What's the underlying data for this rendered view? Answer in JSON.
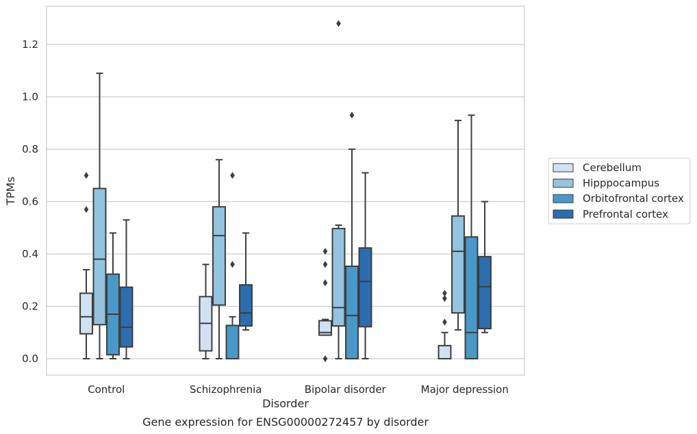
{
  "chart_data": {
    "type": "box",
    "title": "Gene expression for ENSG00000272457 by disorder",
    "xlabel": "Disorder",
    "ylabel": "TPMs",
    "ylim": [
      -0.06,
      1.35
    ],
    "yticks": [
      "0.0",
      "0.2",
      "0.4",
      "0.6",
      "0.8",
      "1.0",
      "1.2"
    ],
    "grid": "horizontal",
    "legend_position": "right",
    "categories": [
      "Control",
      "Schizophrenia",
      "Bipolar disorder",
      "Major depression"
    ],
    "series": [
      {
        "name": "Cerebellum",
        "color": "#d0e1f2",
        "boxes": [
          {
            "whislo": 0.0,
            "q1": 0.095,
            "med": 0.16,
            "q3": 0.25,
            "whishi": 0.34,
            "fliers": [
              0.57,
              0.7
            ]
          },
          {
            "whislo": 0.0,
            "q1": 0.03,
            "med": 0.135,
            "q3": 0.237,
            "whishi": 0.36,
            "fliers": []
          },
          {
            "whislo": 0.09,
            "q1": 0.09,
            "med": 0.1,
            "q3": 0.145,
            "whishi": 0.15,
            "fliers": [
              0.0,
              0.29,
              0.36,
              0.41
            ]
          },
          {
            "whislo": 0.0,
            "q1": 0.0,
            "med": 0.0,
            "q3": 0.05,
            "whishi": 0.1,
            "fliers": [
              0.14,
              0.23,
              0.25
            ]
          }
        ]
      },
      {
        "name": "Hipppocampus",
        "color": "#94c4df",
        "boxes": [
          {
            "whislo": 0.0,
            "q1": 0.13,
            "med": 0.38,
            "q3": 0.65,
            "whishi": 1.09,
            "fliers": []
          },
          {
            "whislo": 0.0,
            "q1": 0.205,
            "med": 0.47,
            "q3": 0.58,
            "whishi": 0.76,
            "fliers": []
          },
          {
            "whislo": 0.0,
            "q1": 0.125,
            "med": 0.195,
            "q3": 0.497,
            "whishi": 0.51,
            "fliers": [
              1.28
            ]
          },
          {
            "whislo": 0.11,
            "q1": 0.175,
            "med": 0.41,
            "q3": 0.545,
            "whishi": 0.91,
            "fliers": []
          }
        ]
      },
      {
        "name": "Orbitofrontal cortex",
        "color": "#4a98c9",
        "boxes": [
          {
            "whislo": 0.0,
            "q1": 0.015,
            "med": 0.17,
            "q3": 0.323,
            "whishi": 0.48,
            "fliers": []
          },
          {
            "whislo": 0.0,
            "q1": 0.0,
            "med": 0.0,
            "q3": 0.127,
            "whishi": 0.16,
            "fliers": [
              0.36,
              0.7
            ]
          },
          {
            "whislo": 0.0,
            "q1": 0.0,
            "med": 0.165,
            "q3": 0.353,
            "whishi": 0.8,
            "fliers": [
              0.93
            ]
          },
          {
            "whislo": 0.0,
            "q1": 0.0,
            "med": 0.1,
            "q3": 0.465,
            "whishi": 0.93,
            "fliers": []
          }
        ]
      },
      {
        "name": "Prefrontal cortex",
        "color": "#2b6dae",
        "boxes": [
          {
            "whislo": 0.0,
            "q1": 0.045,
            "med": 0.12,
            "q3": 0.273,
            "whishi": 0.53,
            "fliers": []
          },
          {
            "whislo": 0.11,
            "q1": 0.125,
            "med": 0.175,
            "q3": 0.282,
            "whishi": 0.48,
            "fliers": []
          },
          {
            "whislo": 0.0,
            "q1": 0.122,
            "med": 0.295,
            "q3": 0.423,
            "whishi": 0.71,
            "fliers": []
          },
          {
            "whislo": 0.1,
            "q1": 0.115,
            "med": 0.275,
            "q3": 0.39,
            "whishi": 0.6,
            "fliers": []
          }
        ]
      }
    ]
  }
}
